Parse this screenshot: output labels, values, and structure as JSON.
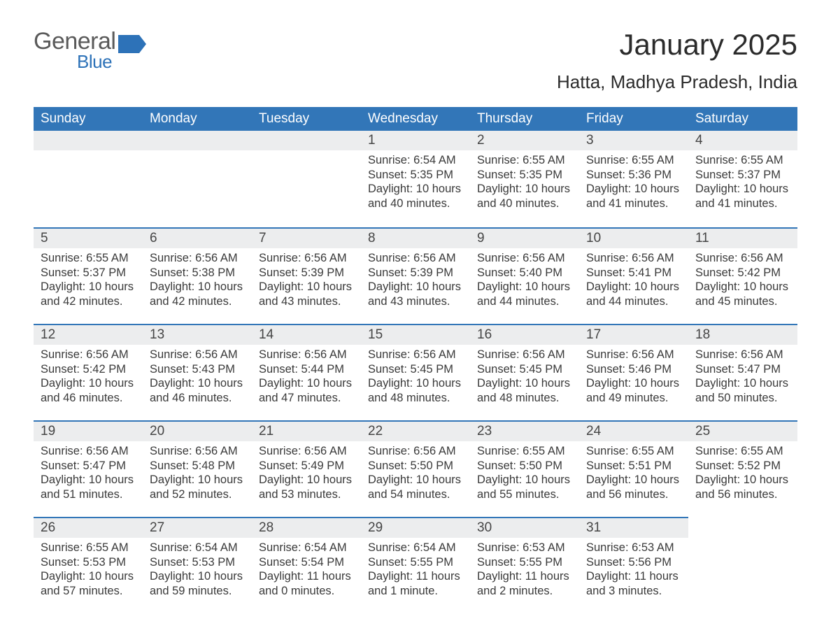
{
  "logo": {
    "general": "General",
    "blue": "Blue"
  },
  "title": "January 2025",
  "location": "Hatta, Madhya Pradesh, India",
  "colors": {
    "header_bg": "#3276b8",
    "header_text": "#ffffff",
    "daynum_bg": "#ecedee",
    "border_top": "#3276b8",
    "body_text": "#3a3a3a",
    "logo_general": "#5a5a5a",
    "logo_blue": "#2d72b8"
  },
  "weekdays": [
    "Sunday",
    "Monday",
    "Tuesday",
    "Wednesday",
    "Thursday",
    "Friday",
    "Saturday"
  ],
  "weeks": [
    [
      null,
      null,
      null,
      {
        "n": "1",
        "sunrise": "6:54 AM",
        "sunset": "5:35 PM",
        "daylight": "10 hours and 40 minutes."
      },
      {
        "n": "2",
        "sunrise": "6:55 AM",
        "sunset": "5:35 PM",
        "daylight": "10 hours and 40 minutes."
      },
      {
        "n": "3",
        "sunrise": "6:55 AM",
        "sunset": "5:36 PM",
        "daylight": "10 hours and 41 minutes."
      },
      {
        "n": "4",
        "sunrise": "6:55 AM",
        "sunset": "5:37 PM",
        "daylight": "10 hours and 41 minutes."
      }
    ],
    [
      {
        "n": "5",
        "sunrise": "6:55 AM",
        "sunset": "5:37 PM",
        "daylight": "10 hours and 42 minutes."
      },
      {
        "n": "6",
        "sunrise": "6:56 AM",
        "sunset": "5:38 PM",
        "daylight": "10 hours and 42 minutes."
      },
      {
        "n": "7",
        "sunrise": "6:56 AM",
        "sunset": "5:39 PM",
        "daylight": "10 hours and 43 minutes."
      },
      {
        "n": "8",
        "sunrise": "6:56 AM",
        "sunset": "5:39 PM",
        "daylight": "10 hours and 43 minutes."
      },
      {
        "n": "9",
        "sunrise": "6:56 AM",
        "sunset": "5:40 PM",
        "daylight": "10 hours and 44 minutes."
      },
      {
        "n": "10",
        "sunrise": "6:56 AM",
        "sunset": "5:41 PM",
        "daylight": "10 hours and 44 minutes."
      },
      {
        "n": "11",
        "sunrise": "6:56 AM",
        "sunset": "5:42 PM",
        "daylight": "10 hours and 45 minutes."
      }
    ],
    [
      {
        "n": "12",
        "sunrise": "6:56 AM",
        "sunset": "5:42 PM",
        "daylight": "10 hours and 46 minutes."
      },
      {
        "n": "13",
        "sunrise": "6:56 AM",
        "sunset": "5:43 PM",
        "daylight": "10 hours and 46 minutes."
      },
      {
        "n": "14",
        "sunrise": "6:56 AM",
        "sunset": "5:44 PM",
        "daylight": "10 hours and 47 minutes."
      },
      {
        "n": "15",
        "sunrise": "6:56 AM",
        "sunset": "5:45 PM",
        "daylight": "10 hours and 48 minutes."
      },
      {
        "n": "16",
        "sunrise": "6:56 AM",
        "sunset": "5:45 PM",
        "daylight": "10 hours and 48 minutes."
      },
      {
        "n": "17",
        "sunrise": "6:56 AM",
        "sunset": "5:46 PM",
        "daylight": "10 hours and 49 minutes."
      },
      {
        "n": "18",
        "sunrise": "6:56 AM",
        "sunset": "5:47 PM",
        "daylight": "10 hours and 50 minutes."
      }
    ],
    [
      {
        "n": "19",
        "sunrise": "6:56 AM",
        "sunset": "5:47 PM",
        "daylight": "10 hours and 51 minutes."
      },
      {
        "n": "20",
        "sunrise": "6:56 AM",
        "sunset": "5:48 PM",
        "daylight": "10 hours and 52 minutes."
      },
      {
        "n": "21",
        "sunrise": "6:56 AM",
        "sunset": "5:49 PM",
        "daylight": "10 hours and 53 minutes."
      },
      {
        "n": "22",
        "sunrise": "6:56 AM",
        "sunset": "5:50 PM",
        "daylight": "10 hours and 54 minutes."
      },
      {
        "n": "23",
        "sunrise": "6:55 AM",
        "sunset": "5:50 PM",
        "daylight": "10 hours and 55 minutes."
      },
      {
        "n": "24",
        "sunrise": "6:55 AM",
        "sunset": "5:51 PM",
        "daylight": "10 hours and 56 minutes."
      },
      {
        "n": "25",
        "sunrise": "6:55 AM",
        "sunset": "5:52 PM",
        "daylight": "10 hours and 56 minutes."
      }
    ],
    [
      {
        "n": "26",
        "sunrise": "6:55 AM",
        "sunset": "5:53 PM",
        "daylight": "10 hours and 57 minutes."
      },
      {
        "n": "27",
        "sunrise": "6:54 AM",
        "sunset": "5:53 PM",
        "daylight": "10 hours and 59 minutes."
      },
      {
        "n": "28",
        "sunrise": "6:54 AM",
        "sunset": "5:54 PM",
        "daylight": "11 hours and 0 minutes."
      },
      {
        "n": "29",
        "sunrise": "6:54 AM",
        "sunset": "5:55 PM",
        "daylight": "11 hours and 1 minute."
      },
      {
        "n": "30",
        "sunrise": "6:53 AM",
        "sunset": "5:55 PM",
        "daylight": "11 hours and 2 minutes."
      },
      {
        "n": "31",
        "sunrise": "6:53 AM",
        "sunset": "5:56 PM",
        "daylight": "11 hours and 3 minutes."
      },
      null
    ]
  ],
  "labels": {
    "sunrise": "Sunrise: ",
    "sunset": "Sunset: ",
    "daylight": "Daylight: "
  }
}
